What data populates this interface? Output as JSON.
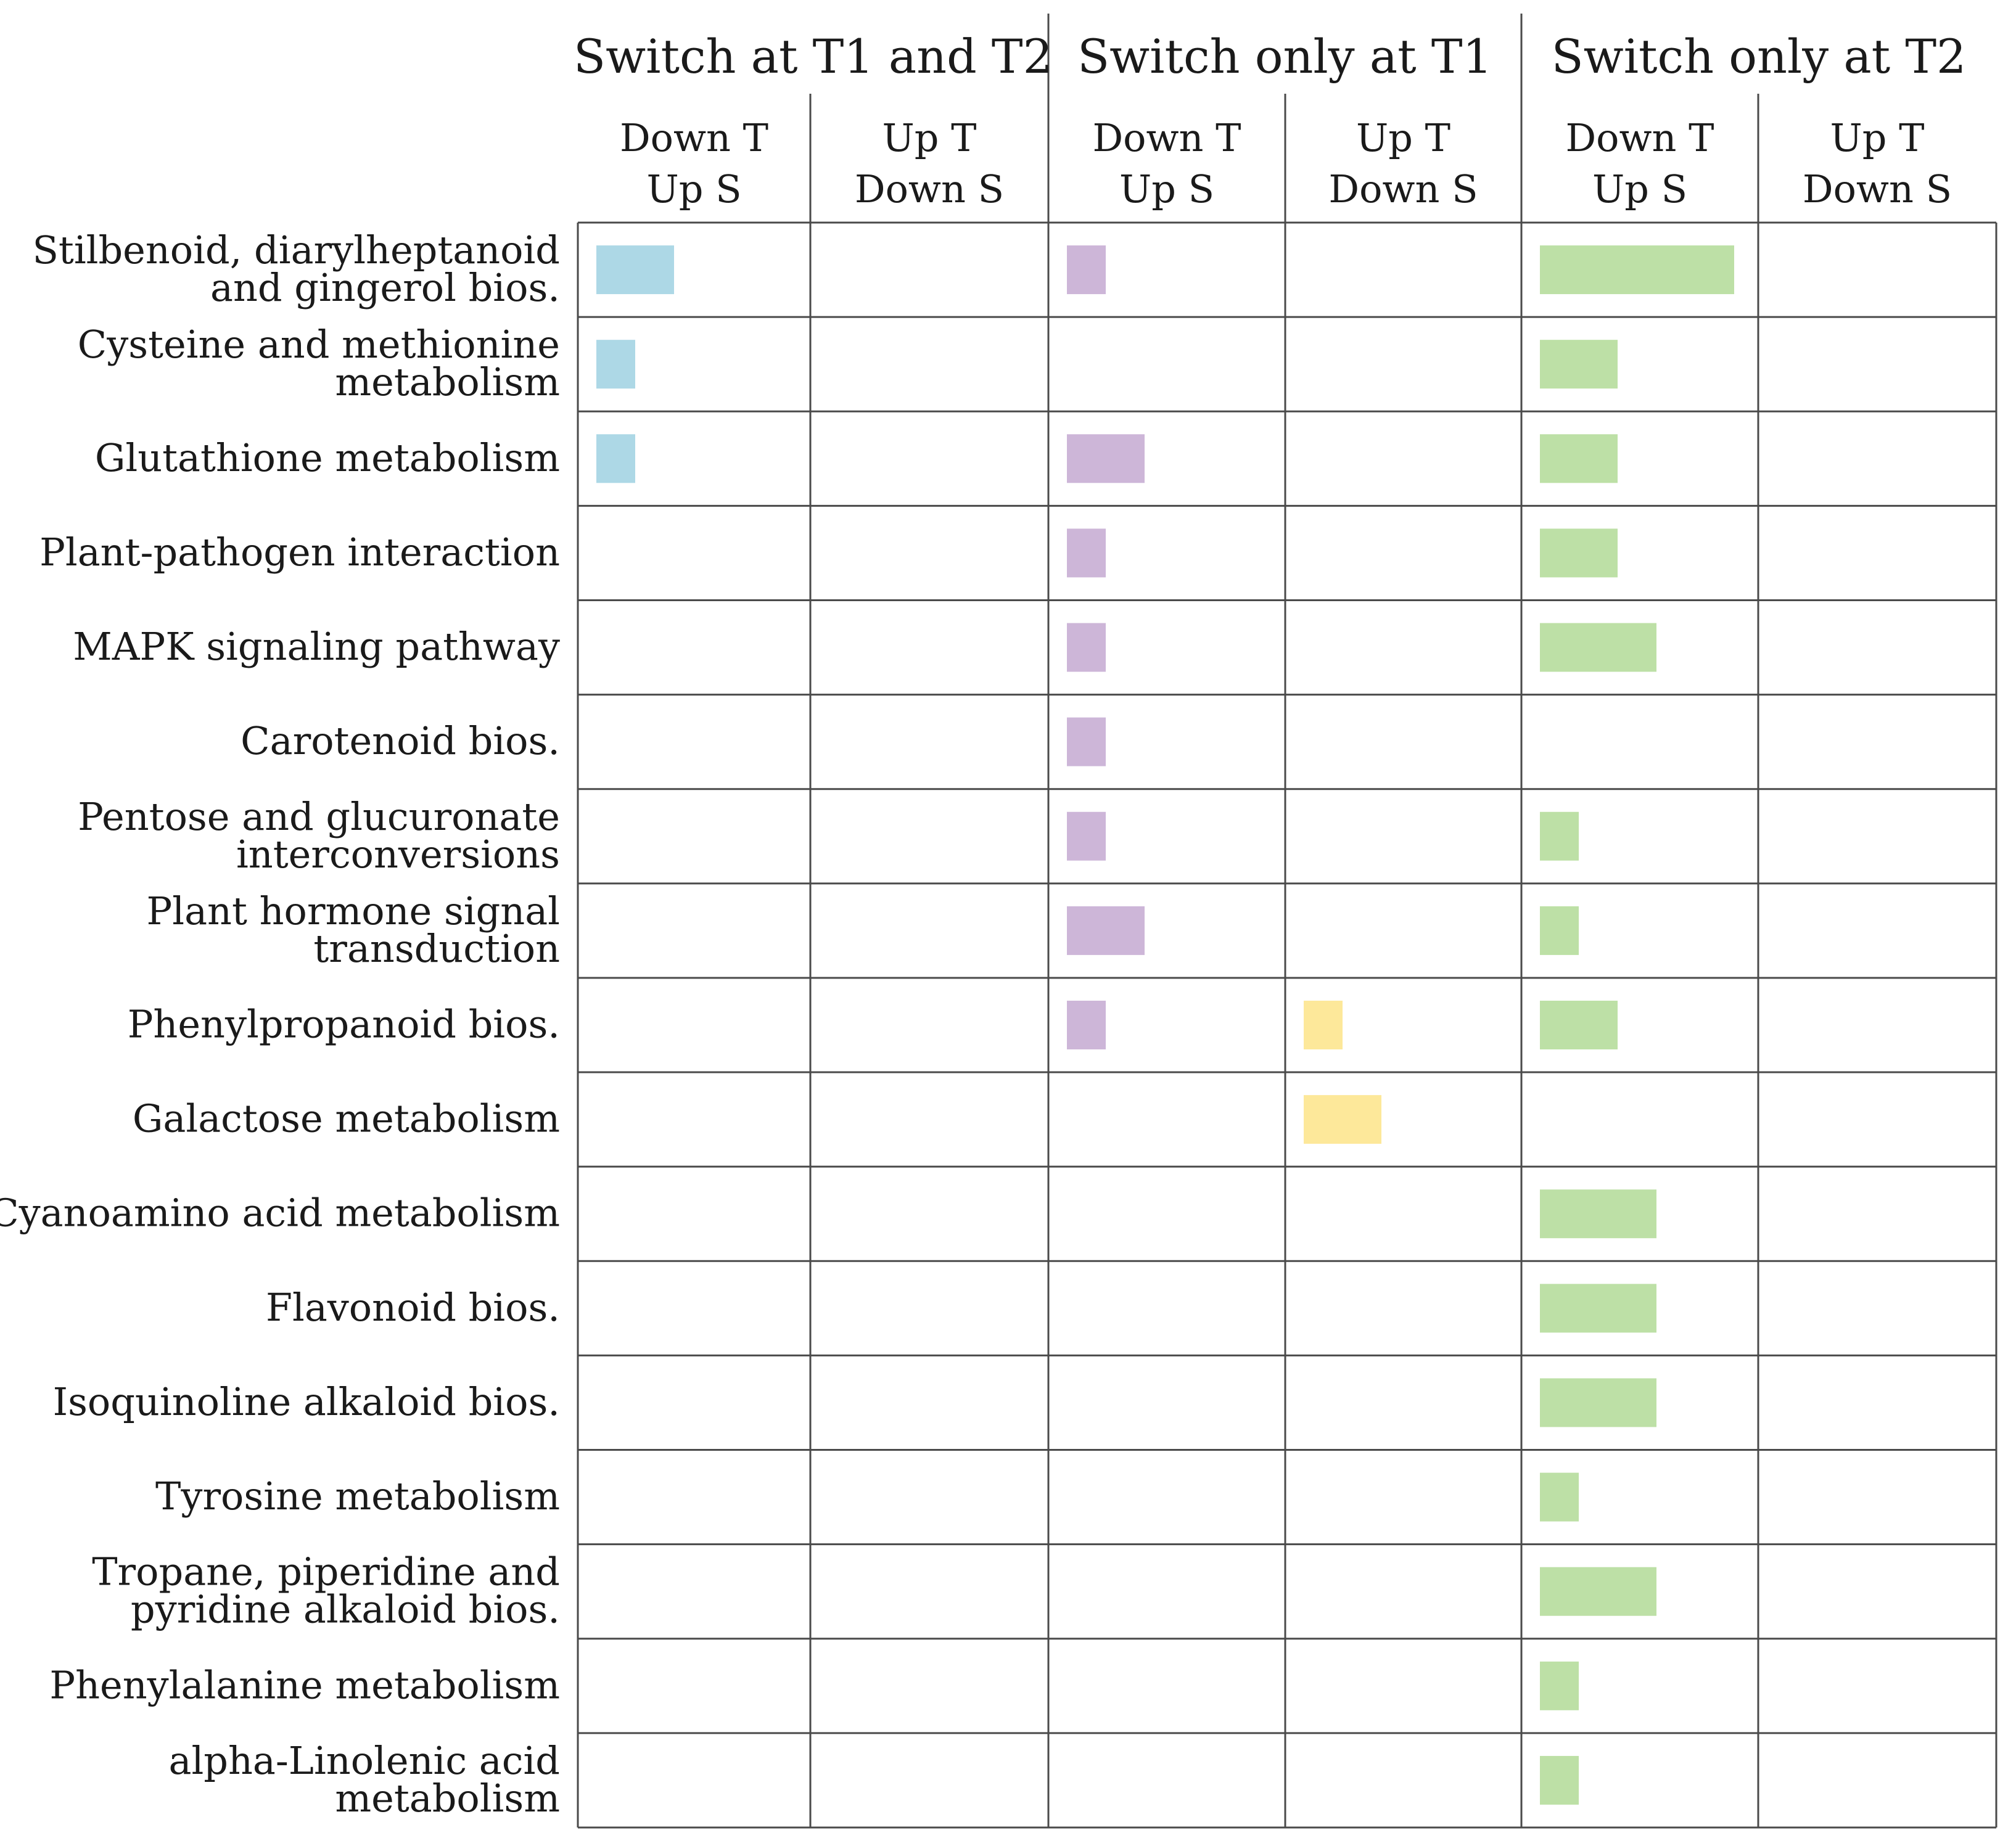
{
  "chart_data": {
    "type": "bar",
    "title": "",
    "groups": [
      {
        "label": "Switch at T1 and T2",
        "color": "#add8e6"
      },
      {
        "label": "Switch only at T1",
        "color": "#cdb6d8"
      },
      {
        "label": "Switch only at T2",
        "color": "#bde0a6"
      }
    ],
    "columns": [
      {
        "group": 0,
        "lines": [
          "Down T",
          "Up S"
        ]
      },
      {
        "group": 0,
        "lines": [
          "Up T",
          "Down S"
        ]
      },
      {
        "group": 1,
        "lines": [
          "Down T",
          "Up S"
        ]
      },
      {
        "group": 1,
        "lines": [
          "Up T",
          "Down S"
        ]
      },
      {
        "group": 2,
        "lines": [
          "Down T",
          "Up S"
        ]
      },
      {
        "group": 2,
        "lines": [
          "Up T",
          "Down S"
        ]
      }
    ],
    "column_colors": [
      "#add8e6",
      "#add8e6",
      "#cdb6d8",
      "#fde89a",
      "#bde0a6",
      "#bde0a6"
    ],
    "categories": [
      [
        "Stilbenoid, diarylheptanoid",
        "and gingerol bios."
      ],
      [
        "Cysteine and methionine",
        "metabolism"
      ],
      [
        "Glutathione metabolism"
      ],
      [
        "Plant-pathogen interaction"
      ],
      [
        "MAPK signaling pathway"
      ],
      [
        "Carotenoid bios."
      ],
      [
        "Pentose and glucuronate",
        "interconversions"
      ],
      [
        "Plant hormone signal",
        "transduction"
      ],
      [
        "Phenylpropanoid bios."
      ],
      [
        "Galactose metabolism"
      ],
      [
        "Cyanoamino acid metabolism"
      ],
      [
        "Flavonoid bios."
      ],
      [
        "Isoquinoline alkaloid bios."
      ],
      [
        "Tyrosine metabolism"
      ],
      [
        "Tropane, piperidine and",
        "pyridine alkaloid bios."
      ],
      [
        "Phenylalanine metabolism"
      ],
      [
        "alpha-Linolenic acid",
        "metabolism"
      ]
    ],
    "values": [
      [
        2,
        0,
        1,
        0,
        5,
        0
      ],
      [
        1,
        0,
        0,
        0,
        2,
        0
      ],
      [
        1,
        0,
        2,
        0,
        2,
        0
      ],
      [
        0,
        0,
        1,
        0,
        2,
        0
      ],
      [
        0,
        0,
        1,
        0,
        3,
        0
      ],
      [
        0,
        0,
        1,
        0,
        0,
        0
      ],
      [
        0,
        0,
        1,
        0,
        1,
        0
      ],
      [
        0,
        0,
        2,
        0,
        1,
        0
      ],
      [
        0,
        0,
        1,
        1,
        2,
        0
      ],
      [
        0,
        0,
        0,
        2,
        0,
        0
      ],
      [
        0,
        0,
        0,
        0,
        3,
        0
      ],
      [
        0,
        0,
        0,
        0,
        3,
        0
      ],
      [
        0,
        0,
        0,
        0,
        3,
        0
      ],
      [
        0,
        0,
        0,
        0,
        1,
        0
      ],
      [
        0,
        0,
        0,
        0,
        3,
        0
      ],
      [
        0,
        0,
        0,
        0,
        1,
        0
      ],
      [
        0,
        0,
        0,
        0,
        1,
        0
      ]
    ],
    "xlim": [
      0,
      6
    ],
    "xlabel": "",
    "ylabel": ""
  }
}
